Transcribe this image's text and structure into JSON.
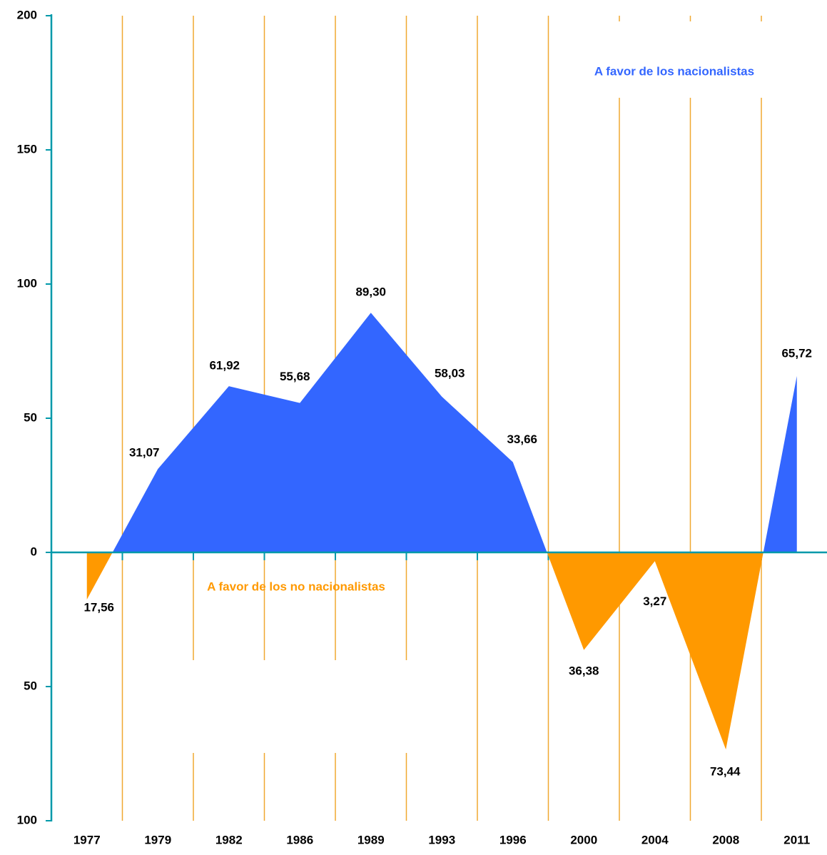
{
  "chart_data": {
    "type": "area",
    "categories": [
      "1977",
      "1979",
      "1982",
      "1986",
      "1989",
      "1993",
      "1996",
      "2000",
      "2004",
      "2008",
      "2011"
    ],
    "values": [
      -17.56,
      31.07,
      61.92,
      55.68,
      89.3,
      58.03,
      33.66,
      -36.38,
      -3.27,
      -73.44,
      65.72
    ],
    "value_labels": [
      "17,56",
      "31,07",
      "61,92",
      "55,68",
      "89,30",
      "58,03",
      "33,66",
      "36,38",
      "3,27",
      "73,44",
      "65,72"
    ],
    "color_positive": "#3366ff",
    "color_negative": "#ff9900",
    "separator_color": "#f0a830",
    "axis_color": "#0099aa",
    "ylim": [
      -100,
      200
    ],
    "yticks": [
      {
        "value": -100,
        "label": "100"
      },
      {
        "value": -50,
        "label": "50"
      },
      0,
      50,
      100,
      150,
      200
    ],
    "annotations": [
      {
        "text": "A favor de los nacionalistas",
        "color": "#3366ff"
      },
      {
        "text": "A favor de los no nacionalistas",
        "color": "#ff9900"
      }
    ]
  }
}
